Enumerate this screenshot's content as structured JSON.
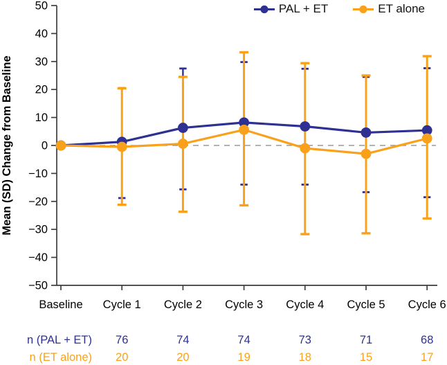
{
  "chart_data": {
    "type": "line",
    "title": "",
    "ylabel": "Mean (SD) Change from Baseline",
    "xlabel": "",
    "ylim": [
      -50,
      50
    ],
    "yticks": [
      -50,
      -40,
      -30,
      -20,
      -10,
      0,
      10,
      20,
      30,
      40,
      50
    ],
    "categories": [
      "Baseline",
      "Cycle 1",
      "Cycle 2",
      "Cycle 3",
      "Cycle 4",
      "Cycle 5",
      "Cycle 6"
    ],
    "zero_reference_line": true,
    "legend_position": "top-right",
    "grid": false,
    "colors": {
      "pal_et": "#2e3192",
      "et_alone": "#f9a11b",
      "axis": "#3d3d3d",
      "zero_line": "#999999"
    },
    "series": [
      {
        "name": "PAL + ET",
        "color": "#2e3192",
        "means": [
          0,
          1.3,
          6.3,
          8.2,
          6.8,
          4.6,
          5.4
        ],
        "upper": [
          null,
          20.5,
          27.5,
          29.8,
          27.4,
          24.5,
          27.6
        ],
        "lower": [
          null,
          -18.8,
          -15.7,
          -14.0,
          -14.0,
          -16.7,
          -18.5
        ]
      },
      {
        "name": "ET alone",
        "color": "#f9a11b",
        "means": [
          0,
          -0.5,
          0.6,
          5.6,
          -1.0,
          -3.0,
          2.5
        ],
        "upper": [
          null,
          20.4,
          24.5,
          33.3,
          29.4,
          25.0,
          31.9
        ],
        "lower": [
          null,
          -21.2,
          -23.7,
          -21.4,
          -31.7,
          -31.4,
          -26.1
        ]
      }
    ],
    "n_table": [
      {
        "label": "n (PAL + ET)",
        "color": "#2e3192",
        "values": [
          76,
          74,
          74,
          73,
          71,
          68
        ]
      },
      {
        "label": "n (ET alone)",
        "color": "#f9a11b",
        "values": [
          20,
          20,
          19,
          18,
          15,
          17
        ]
      }
    ]
  }
}
